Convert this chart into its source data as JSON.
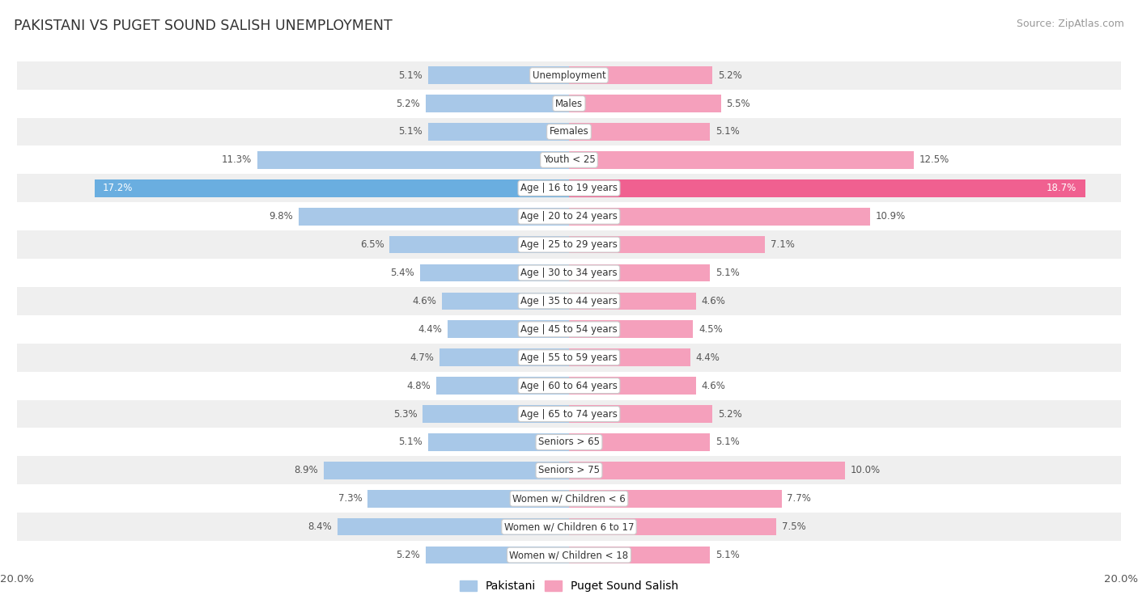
{
  "title": "PAKISTANI VS PUGET SOUND SALISH UNEMPLOYMENT",
  "source": "Source: ZipAtlas.com",
  "categories": [
    "Unemployment",
    "Males",
    "Females",
    "Youth < 25",
    "Age | 16 to 19 years",
    "Age | 20 to 24 years",
    "Age | 25 to 29 years",
    "Age | 30 to 34 years",
    "Age | 35 to 44 years",
    "Age | 45 to 54 years",
    "Age | 55 to 59 years",
    "Age | 60 to 64 years",
    "Age | 65 to 74 years",
    "Seniors > 65",
    "Seniors > 75",
    "Women w/ Children < 6",
    "Women w/ Children 6 to 17",
    "Women w/ Children < 18"
  ],
  "pakistani": [
    5.1,
    5.2,
    5.1,
    11.3,
    17.2,
    9.8,
    6.5,
    5.4,
    4.6,
    4.4,
    4.7,
    4.8,
    5.3,
    5.1,
    8.9,
    7.3,
    8.4,
    5.2
  ],
  "puget": [
    5.2,
    5.5,
    5.1,
    12.5,
    18.7,
    10.9,
    7.1,
    5.1,
    4.6,
    4.5,
    4.4,
    4.6,
    5.2,
    5.1,
    10.0,
    7.7,
    7.5,
    5.1
  ],
  "pakistani_color": "#a8c8e8",
  "puget_color": "#f5a0bc",
  "highlight_pak_color": "#6aaee0",
  "highlight_pug_color": "#f06090",
  "label_color_default": "#555555",
  "label_color_highlight": "#ffffff",
  "highlight_threshold": 15.0,
  "axis_max": 20.0,
  "bar_height": 0.62,
  "row_bg_odd": "#efefef",
  "row_bg_even": "#ffffff"
}
